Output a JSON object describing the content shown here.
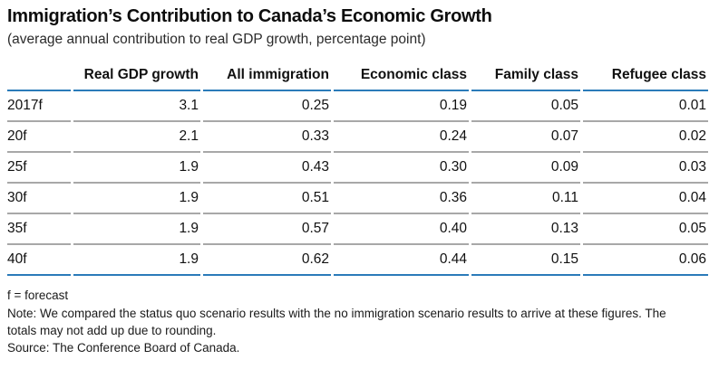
{
  "page": {
    "title": "Immigration’s Contribution to Canada’s Economic Growth",
    "subtitle": "(average annual contribution to real GDP growth, percentage point)"
  },
  "table": {
    "columns": [
      "Real GDP growth",
      "All immigration",
      "Economic class",
      "Family class",
      "Refugee class"
    ],
    "rows": [
      {
        "label": "2017f",
        "values": [
          "3.1",
          "0.25",
          "0.19",
          "0.05",
          "0.01"
        ]
      },
      {
        "label": "20f",
        "values": [
          "2.1",
          "0.33",
          "0.24",
          "0.07",
          "0.02"
        ]
      },
      {
        "label": "25f",
        "values": [
          "1.9",
          "0.43",
          "0.30",
          "0.09",
          "0.03"
        ]
      },
      {
        "label": "30f",
        "values": [
          "1.9",
          "0.51",
          "0.36",
          "0.11",
          "0.04"
        ]
      },
      {
        "label": "35f",
        "values": [
          "1.9",
          "0.57",
          "0.40",
          "0.13",
          "0.05"
        ]
      },
      {
        "label": "40f",
        "values": [
          "1.9",
          "0.62",
          "0.44",
          "0.15",
          "0.06"
        ]
      }
    ]
  },
  "notes": {
    "forecast": "f = forecast",
    "methodology": "Note: We compared the status quo scenario results with the no immigration scenario results to arrive at these figures. The totals may not add up due to rounding.",
    "source": "Source: The Conference Board of Canada."
  },
  "colors": {
    "accent_blue": "#2b7bb9",
    "divider_gray": "#a8a8a8"
  },
  "chart_data": {
    "type": "table",
    "title": "Immigration’s Contribution to Canada’s Economic Growth",
    "subtitle": "(average annual contribution to real GDP growth, percentage point)",
    "categories": [
      "2017f",
      "20f",
      "25f",
      "30f",
      "35f",
      "40f"
    ],
    "series": [
      {
        "name": "Real GDP growth",
        "values": [
          3.1,
          2.1,
          1.9,
          1.9,
          1.9,
          1.9
        ]
      },
      {
        "name": "All immigration",
        "values": [
          0.25,
          0.33,
          0.43,
          0.51,
          0.57,
          0.62
        ]
      },
      {
        "name": "Economic class",
        "values": [
          0.19,
          0.24,
          0.3,
          0.36,
          0.4,
          0.44
        ]
      },
      {
        "name": "Family class",
        "values": [
          0.05,
          0.07,
          0.09,
          0.11,
          0.13,
          0.15
        ]
      },
      {
        "name": "Refugee class",
        "values": [
          0.01,
          0.02,
          0.03,
          0.04,
          0.05,
          0.06
        ]
      }
    ],
    "notes": [
      "f = forecast",
      "Note: We compared the status quo scenario results with the no immigration scenario results to arrive at these figures. The totals may not add up due to rounding.",
      "Source: The Conference Board of Canada."
    ]
  }
}
